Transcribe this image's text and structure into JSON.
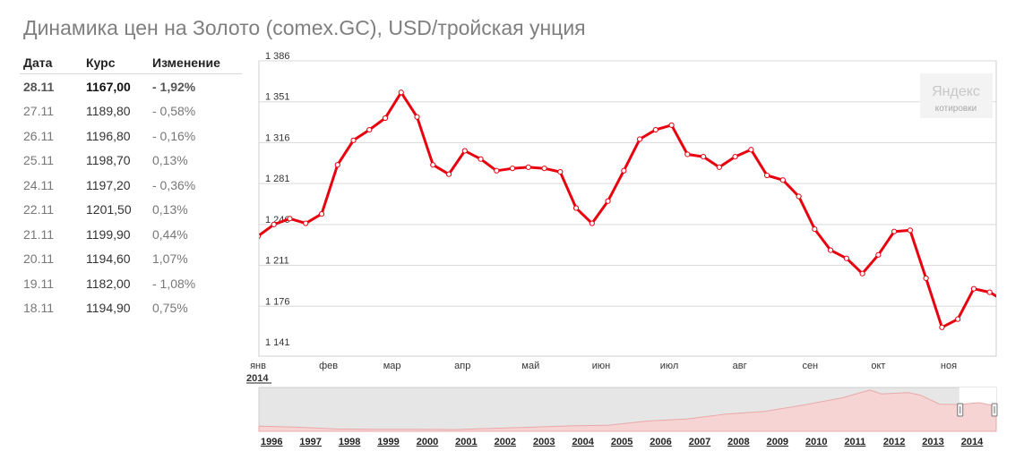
{
  "title": "Динамика цен на Золото (comex.GC), USD/тройская унция",
  "table": {
    "headers": {
      "date": "Дата",
      "rate": "Курс",
      "change": "Изменение"
    },
    "rows": [
      {
        "date": "28.11",
        "rate": "1167,00",
        "change": "- 1,92%"
      },
      {
        "date": "27.11",
        "rate": "1189,80",
        "change": "- 0,58%"
      },
      {
        "date": "26.11",
        "rate": "1196,80",
        "change": "- 0,16%"
      },
      {
        "date": "25.11",
        "rate": "1198,70",
        "change": "0,13%"
      },
      {
        "date": "24.11",
        "rate": "1197,20",
        "change": "- 0,36%"
      },
      {
        "date": "22.11",
        "rate": "1201,50",
        "change": "0,13%"
      },
      {
        "date": "21.11",
        "rate": "1199,90",
        "change": "0,44%"
      },
      {
        "date": "20.11",
        "rate": "1194,60",
        "change": "1,07%"
      },
      {
        "date": "19.11",
        "rate": "1182,00",
        "change": "- 1,08%"
      },
      {
        "date": "18.11",
        "rate": "1194,90",
        "change": "0,75%"
      }
    ]
  },
  "logo": {
    "name": "Яндекс",
    "sub": "котировки"
  },
  "colors": {
    "series": "#e8000f",
    "grid": "#d9d9d9",
    "navigator_fill": "#f7d4d4"
  },
  "chart_data": [
    {
      "type": "line",
      "ylim": [
        1141,
        1386
      ],
      "yticks": [
        1141,
        1176,
        1211,
        1246,
        1281,
        1316,
        1351,
        1386
      ],
      "ytick_labels": [
        "1 141",
        "1 176",
        "1 211",
        "1 246",
        "1 281",
        "1 316",
        "1 351",
        "1 386"
      ],
      "xlim": [
        "2014-01-01",
        "2014-12-01"
      ],
      "x_ticks": [
        {
          "date": "2014-01-01",
          "label": "янв"
        },
        {
          "date": "2014-02-01",
          "label": "фев"
        },
        {
          "date": "2014-03-01",
          "label": "мар"
        },
        {
          "date": "2014-04-01",
          "label": "апр"
        },
        {
          "date": "2014-05-01",
          "label": "май"
        },
        {
          "date": "2014-06-01",
          "label": "июн"
        },
        {
          "date": "2014-07-01",
          "label": "июл"
        },
        {
          "date": "2014-08-01",
          "label": "авг"
        },
        {
          "date": "2014-09-01",
          "label": "сен"
        },
        {
          "date": "2014-10-01",
          "label": "окт"
        },
        {
          "date": "2014-11-01",
          "label": "ноя"
        }
      ],
      "year_label": "2014",
      "grid": true,
      "highlight_date": "2014-08-15",
      "series": [
        {
          "x": [
            "2014-01-01",
            "2014-01-08",
            "2014-01-15",
            "2014-01-22",
            "2014-01-29",
            "2014-02-05",
            "2014-02-12",
            "2014-02-19",
            "2014-02-26",
            "2014-03-05",
            "2014-03-12",
            "2014-03-19",
            "2014-03-26",
            "2014-04-02",
            "2014-04-09",
            "2014-04-16",
            "2014-04-23",
            "2014-04-30",
            "2014-05-07",
            "2014-05-14",
            "2014-05-21",
            "2014-05-28",
            "2014-06-04",
            "2014-06-11",
            "2014-06-18",
            "2014-06-25",
            "2014-07-02",
            "2014-07-09",
            "2014-07-16",
            "2014-07-23",
            "2014-07-30",
            "2014-08-06",
            "2014-08-13",
            "2014-08-20",
            "2014-08-27",
            "2014-09-03",
            "2014-09-10",
            "2014-09-17",
            "2014-09-24",
            "2014-10-01",
            "2014-10-08",
            "2014-10-15",
            "2014-10-22",
            "2014-10-29",
            "2014-11-05",
            "2014-11-12",
            "2014-11-19",
            "2014-11-26"
          ],
          "values": [
            1236,
            1246,
            1251,
            1247,
            1255,
            1297,
            1318,
            1327,
            1337,
            1359,
            1338,
            1297,
            1289,
            1309,
            1302,
            1292,
            1294,
            1295,
            1294,
            1291,
            1260,
            1247,
            1266,
            1292,
            1319,
            1327,
            1331,
            1306,
            1304,
            1295,
            1304,
            1310,
            1288,
            1284,
            1270,
            1242,
            1224,
            1217,
            1204,
            1220,
            1240,
            1241,
            1200,
            1158,
            1165,
            1191,
            1188,
            1180
          ]
        }
      ]
    },
    {
      "type": "area",
      "xlim": [
        1996,
        2014.95
      ],
      "ylim": [
        200,
        1900
      ],
      "year_labels": [
        "1996",
        "1997",
        "1998",
        "1999",
        "2000",
        "2001",
        "2002",
        "2003",
        "2004",
        "2005",
        "2006",
        "2007",
        "2008",
        "2009",
        "2010",
        "2011",
        "2012",
        "2013",
        "2014"
      ],
      "selection": [
        2014,
        2014.95
      ],
      "series": [
        {
          "x": [
            1996,
            1997,
            1998,
            1999,
            2000,
            2001,
            2002,
            2003,
            2004,
            2005,
            2006,
            2007,
            2008,
            2009,
            2010,
            2011,
            2011.7,
            2012,
            2012.7,
            2013,
            2013.5,
            2014,
            2014.5,
            2014.95
          ],
          "values": [
            400,
            360,
            290,
            280,
            280,
            270,
            310,
            360,
            410,
            440,
            600,
            680,
            870,
            970,
            1220,
            1500,
            1800,
            1650,
            1700,
            1600,
            1250,
            1240,
            1310,
            1180
          ]
        }
      ]
    }
  ]
}
